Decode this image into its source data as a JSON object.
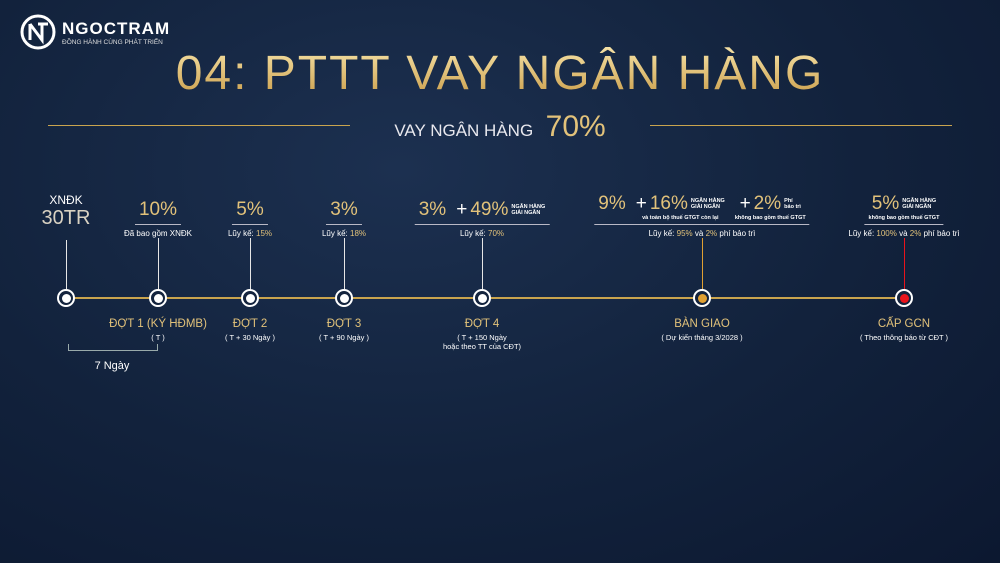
{
  "header": {
    "logo": {
      "name": "NGOCTRAM",
      "tagline": "ĐỒNG HÀNH CÙNG PHÁT TRIỂN"
    },
    "title": "04: PTTT VAY NGÂN HÀNG",
    "subtitle": {
      "text": "VAY NGÂN HÀNG",
      "value": "70%"
    }
  },
  "timeline": {
    "line_color": "#c9a44e",
    "milestones": [
      {
        "label_above": "XNĐK",
        "headline": [
          {
            "amount": "30TR"
          }
        ],
        "dot_color": "#ffffff"
      },
      {
        "headline": [
          {
            "amount": "10%"
          }
        ],
        "note": [
          "Đã bao gồm XNĐK"
        ],
        "dot_color": "#ffffff",
        "stage": "ĐỢT 1 (KÝ HĐMB)",
        "details": [
          "( T )"
        ]
      },
      {
        "headline": [
          {
            "amount": "5%"
          }
        ],
        "note": [
          "Lũy kế:",
          "15%"
        ],
        "dot_color": "#ffffff",
        "stage": "ĐỢT 2",
        "details": [
          "( T + 30 Ngày )"
        ]
      },
      {
        "headline": [
          {
            "amount": "3%"
          }
        ],
        "note": [
          "Lũy kế:",
          "18%"
        ],
        "dot_color": "#ffffff",
        "stage": "ĐỢT 3",
        "details": [
          "( T + 90 Ngày )"
        ]
      },
      {
        "headline": [
          {
            "amount": "3%"
          },
          {
            "prefix": "+",
            "amount": "49%",
            "tag": [
              "NGÂN HÀNG",
              "GIẢI NGÂN"
            ]
          }
        ],
        "note": [
          "Lũy kế:",
          "70%"
        ],
        "dot_color": "#ffffff",
        "stage": "ĐỢT 4",
        "details": [
          "( T + 150 Ngày",
          "hoặc theo TT của CĐT)"
        ]
      },
      {
        "headline": [
          {
            "amount": "9%"
          },
          {
            "prefix": "+",
            "amount": "16%",
            "tag": [
              "NGÂN HÀNG",
              "GIẢI NGÂN"
            ],
            "tag_note": "và toàn bộ thuế GTGT còn lại"
          },
          {
            "prefix": "+",
            "amount": "2%",
            "tag": [
              "Phí",
              "bảo trì"
            ],
            "tag_note": "không bao gồm thuế GTGT"
          }
        ],
        "note": [
          "Lũy kế:",
          "95%",
          "và",
          "2%",
          "phí bảo trì"
        ],
        "dot_color": "#e0a032",
        "stage": "BÀN GIAO",
        "details": [
          "( Dự kiến tháng 3/2028 )"
        ]
      },
      {
        "headline": [
          {
            "amount": "5%",
            "tag": [
              "NGÂN HÀNG",
              "GIẢI NGÂN"
            ],
            "tag_note": "không bao gồm thuế GTGT"
          }
        ],
        "note": [
          "Lũy kế:",
          "100%",
          "và",
          "2%",
          "phí bảo trì"
        ],
        "dot_color": "#e8141c",
        "stage": "CẤP GCN",
        "details": [
          "( Theo thông báo từ CĐT )"
        ]
      }
    ],
    "interval": {
      "label": "7 Ngày"
    }
  }
}
